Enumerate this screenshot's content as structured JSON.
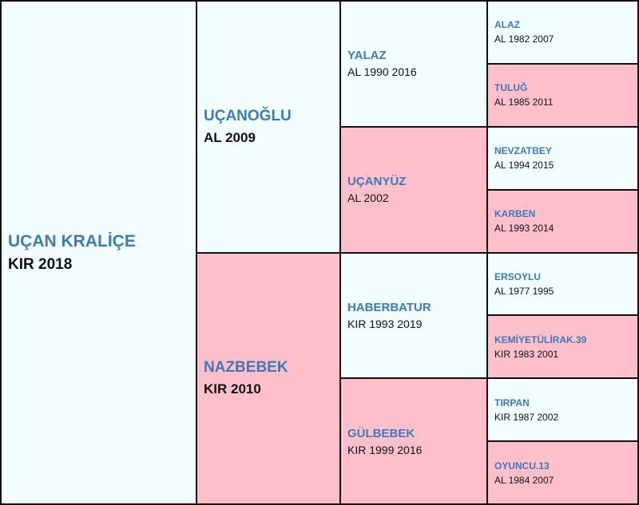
{
  "subject": {
    "name": "UÇAN KRALİÇE",
    "info": "KIR 2018"
  },
  "parents": [
    {
      "name": "UÇANOĞLU",
      "info": "AL 2009"
    },
    {
      "name": "NAZBEBEK",
      "info": "KIR 2010"
    }
  ],
  "grandparents": [
    {
      "name": "YALAZ",
      "info": "AL 1990 2016"
    },
    {
      "name": "UÇANYÜZ",
      "info": "AL 2002"
    },
    {
      "name": "HABERBATUR",
      "info": "KIR 1993 2019"
    },
    {
      "name": "GÜLBEBEK",
      "info": "KIR 1999 2016"
    }
  ],
  "great_grandparents": [
    {
      "name": "ALAZ",
      "info": "AL 1982 2007"
    },
    {
      "name": "TULUĞ",
      "info": "AL 1985 2011"
    },
    {
      "name": "NEVZATBEY",
      "info": "AL 1994 2015"
    },
    {
      "name": "KARBEN",
      "info": "AL 1993 2014"
    },
    {
      "name": "ERSOYLU",
      "info": "AL 1977 1995"
    },
    {
      "name": "KEMİYETÜLİRAK.39",
      "info": "KIR 1983 2001"
    },
    {
      "name": "TIRPAN",
      "info": "KIR 1987 2002"
    },
    {
      "name": "OYUNCU.13",
      "info": "AL 1984 2007"
    }
  ],
  "colors": {
    "sire_bg": "#f2fefe",
    "dam_bg": "#ffc0cb",
    "name": "#3d7ab8",
    "border": "#111111"
  }
}
